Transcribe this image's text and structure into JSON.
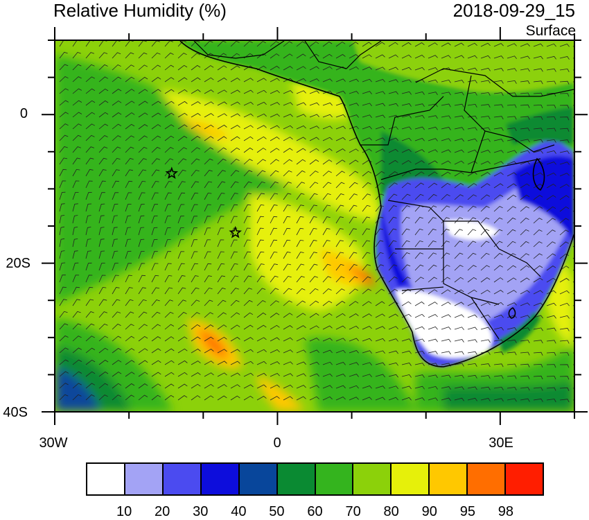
{
  "title": "Relative Humidity (%)",
  "datetime": "2018-09-29_15",
  "level": "Surface",
  "map": {
    "lon_range": [
      -30,
      40
    ],
    "lat_range": [
      -40,
      10
    ],
    "lat_ticks": [
      "0",
      "20S",
      "40S"
    ],
    "lon_ticks": [
      "30W",
      "0",
      "30E"
    ],
    "markers": [
      {
        "symbol": "star",
        "lon": -14.3,
        "lat": -7.9
      },
      {
        "symbol": "star",
        "lon": -5.7,
        "lat": -15.9
      }
    ]
  },
  "colorbar": {
    "colors": [
      "#ffffff",
      "#a3a3f5",
      "#4b4bf0",
      "#0d0ddc",
      "#08469b",
      "#0a8a32",
      "#34b41e",
      "#8cd10a",
      "#e6f00a",
      "#ffc800",
      "#ff6e00",
      "#ff1e00"
    ],
    "labels": [
      "10",
      "20",
      "30",
      "40",
      "50",
      "60",
      "70",
      "80",
      "90",
      "95",
      "98"
    ]
  }
}
